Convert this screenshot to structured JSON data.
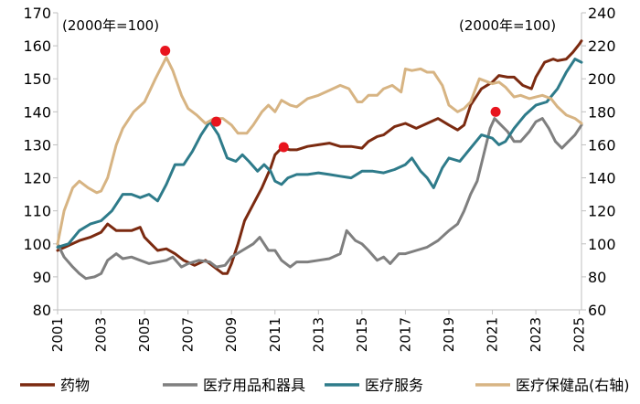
{
  "chart_data": {
    "type": "line",
    "left_note": "(2000年=100)",
    "right_note": "(2000年=100)",
    "x_ticks": [
      "2001",
      "2003",
      "2005",
      "2007",
      "2009",
      "2011",
      "2013",
      "2015",
      "2017",
      "2019",
      "2021",
      "2023",
      "2025"
    ],
    "xlim": [
      2001,
      2025.1
    ],
    "ylim_left": [
      80,
      170
    ],
    "ylim_right": [
      60,
      240
    ],
    "y_ticks_left": [
      80,
      90,
      100,
      110,
      120,
      130,
      140,
      150,
      160,
      170
    ],
    "y_ticks_right": [
      60,
      80,
      100,
      120,
      140,
      160,
      180,
      200,
      220,
      240
    ],
    "series": [
      {
        "name": "药物",
        "color": "#7b2a10",
        "axis": "left",
        "points": [
          [
            2001,
            98
          ],
          [
            2001.5,
            99.5
          ],
          [
            2002,
            101
          ],
          [
            2002.5,
            102
          ],
          [
            2003,
            103.5
          ],
          [
            2003.3,
            106
          ],
          [
            2003.7,
            104
          ],
          [
            2004,
            104
          ],
          [
            2004.4,
            104
          ],
          [
            2004.8,
            105
          ],
          [
            2005,
            102
          ],
          [
            2005.3,
            100
          ],
          [
            2005.6,
            98
          ],
          [
            2006,
            98.5
          ],
          [
            2006.4,
            97
          ],
          [
            2006.8,
            95
          ],
          [
            2007.3,
            93.5
          ],
          [
            2007.8,
            95
          ],
          [
            2008.2,
            93
          ],
          [
            2008.6,
            91
          ],
          [
            2008.8,
            91
          ],
          [
            2009,
            94
          ],
          [
            2009.3,
            100
          ],
          [
            2009.6,
            107
          ],
          [
            2010,
            112
          ],
          [
            2010.4,
            117
          ],
          [
            2010.8,
            123
          ],
          [
            2011,
            127
          ],
          [
            2011.3,
            129
          ],
          [
            2011.7,
            128.5
          ],
          [
            2012,
            128.5
          ],
          [
            2012.5,
            129.5
          ],
          [
            2013,
            130
          ],
          [
            2013.5,
            130.5
          ],
          [
            2014,
            129.5
          ],
          [
            2014.5,
            129.5
          ],
          [
            2015,
            129
          ],
          [
            2015.3,
            131
          ],
          [
            2015.7,
            132.5
          ],
          [
            2016,
            133
          ],
          [
            2016.5,
            135.5
          ],
          [
            2017,
            136.5
          ],
          [
            2017.5,
            135
          ],
          [
            2018,
            136.5
          ],
          [
            2018.5,
            138
          ],
          [
            2019,
            136
          ],
          [
            2019.4,
            134.5
          ],
          [
            2019.7,
            136
          ],
          [
            2020,
            142
          ],
          [
            2020.5,
            147
          ],
          [
            2021,
            149
          ],
          [
            2021.3,
            151
          ],
          [
            2021.7,
            150.5
          ],
          [
            2022,
            150.5
          ],
          [
            2022.4,
            148
          ],
          [
            2022.8,
            147
          ],
          [
            2023,
            150.5
          ],
          [
            2023.4,
            155
          ],
          [
            2023.8,
            156
          ],
          [
            2024,
            155.5
          ],
          [
            2024.4,
            156
          ],
          [
            2024.7,
            158
          ],
          [
            2025,
            160.5
          ],
          [
            2025.1,
            161.5
          ]
        ]
      },
      {
        "name": "医疗用品和器具",
        "color": "#7f7f7f",
        "axis": "left",
        "points": [
          [
            2001,
            100
          ],
          [
            2001.3,
            96
          ],
          [
            2001.7,
            93
          ],
          [
            2002,
            91
          ],
          [
            2002.3,
            89.5
          ],
          [
            2002.7,
            90
          ],
          [
            2003,
            91
          ],
          [
            2003.3,
            95
          ],
          [
            2003.7,
            97
          ],
          [
            2004,
            95.5
          ],
          [
            2004.4,
            96
          ],
          [
            2004.8,
            95
          ],
          [
            2005.2,
            94
          ],
          [
            2005.6,
            94.5
          ],
          [
            2006,
            95
          ],
          [
            2006.3,
            96
          ],
          [
            2006.7,
            93
          ],
          [
            2007,
            94
          ],
          [
            2007.5,
            95
          ],
          [
            2008,
            94.5
          ],
          [
            2008.3,
            93
          ],
          [
            2008.7,
            93.5
          ],
          [
            2009,
            96
          ],
          [
            2009.5,
            98
          ],
          [
            2010,
            100
          ],
          [
            2010.3,
            102
          ],
          [
            2010.7,
            98
          ],
          [
            2011,
            98
          ],
          [
            2011.3,
            95
          ],
          [
            2011.7,
            93
          ],
          [
            2012,
            94.5
          ],
          [
            2012.5,
            94.5
          ],
          [
            2013,
            95
          ],
          [
            2013.5,
            95.5
          ],
          [
            2014,
            97
          ],
          [
            2014.3,
            104
          ],
          [
            2014.7,
            101
          ],
          [
            2015,
            100
          ],
          [
            2015.3,
            98
          ],
          [
            2015.7,
            95
          ],
          [
            2016,
            96
          ],
          [
            2016.3,
            94
          ],
          [
            2016.7,
            97
          ],
          [
            2017,
            97
          ],
          [
            2017.5,
            98
          ],
          [
            2018,
            99
          ],
          [
            2018.5,
            101
          ],
          [
            2019,
            104
          ],
          [
            2019.4,
            106
          ],
          [
            2019.7,
            110
          ],
          [
            2020,
            115
          ],
          [
            2020.3,
            119
          ],
          [
            2020.6,
            127
          ],
          [
            2020.9,
            135
          ],
          [
            2021.1,
            138
          ],
          [
            2021.4,
            136
          ],
          [
            2021.7,
            134
          ],
          [
            2022,
            131
          ],
          [
            2022.3,
            131
          ],
          [
            2022.7,
            134
          ],
          [
            2023,
            137
          ],
          [
            2023.3,
            138
          ],
          [
            2023.6,
            135
          ],
          [
            2023.9,
            131
          ],
          [
            2024.2,
            129
          ],
          [
            2024.5,
            131
          ],
          [
            2024.8,
            133
          ],
          [
            2025,
            135
          ],
          [
            2025.1,
            136
          ]
        ]
      },
      {
        "name": "医疗服务",
        "color": "#2e7b8a",
        "axis": "left",
        "points": [
          [
            2001,
            99
          ],
          [
            2001.5,
            100
          ],
          [
            2002,
            104
          ],
          [
            2002.5,
            106
          ],
          [
            2003,
            107
          ],
          [
            2003.5,
            110
          ],
          [
            2004,
            115
          ],
          [
            2004.4,
            115
          ],
          [
            2004.8,
            114
          ],
          [
            2005.2,
            115
          ],
          [
            2005.6,
            113
          ],
          [
            2006,
            118
          ],
          [
            2006.4,
            124
          ],
          [
            2006.8,
            124
          ],
          [
            2007.2,
            128
          ],
          [
            2007.6,
            133
          ],
          [
            2008,
            137
          ],
          [
            2008.4,
            133
          ],
          [
            2008.8,
            126
          ],
          [
            2009.2,
            125
          ],
          [
            2009.5,
            127
          ],
          [
            2009.8,
            125
          ],
          [
            2010.2,
            122
          ],
          [
            2010.5,
            124
          ],
          [
            2010.8,
            122
          ],
          [
            2011,
            119
          ],
          [
            2011.3,
            118
          ],
          [
            2011.6,
            120
          ],
          [
            2012,
            121
          ],
          [
            2012.5,
            121
          ],
          [
            2013,
            121.5
          ],
          [
            2013.5,
            121
          ],
          [
            2014,
            120.5
          ],
          [
            2014.5,
            120
          ],
          [
            2015,
            122
          ],
          [
            2015.5,
            122
          ],
          [
            2016,
            121.5
          ],
          [
            2016.5,
            122.5
          ],
          [
            2017,
            124
          ],
          [
            2017.3,
            126
          ],
          [
            2017.7,
            122
          ],
          [
            2018,
            120
          ],
          [
            2018.3,
            117
          ],
          [
            2018.7,
            123
          ],
          [
            2019,
            126
          ],
          [
            2019.5,
            125
          ],
          [
            2020,
            129
          ],
          [
            2020.5,
            133
          ],
          [
            2021,
            132
          ],
          [
            2021.3,
            130
          ],
          [
            2021.6,
            131
          ],
          [
            2022,
            135
          ],
          [
            2022.5,
            139
          ],
          [
            2023,
            142
          ],
          [
            2023.5,
            143
          ],
          [
            2024,
            147
          ],
          [
            2024.4,
            152
          ],
          [
            2024.8,
            156
          ],
          [
            2025.1,
            155
          ]
        ]
      },
      {
        "name": "医疗保健品(右轴)",
        "color": "#d7b483",
        "axis": "right",
        "points": [
          [
            2001,
            100
          ],
          [
            2001.3,
            120
          ],
          [
            2001.7,
            134
          ],
          [
            2002,
            138
          ],
          [
            2002.4,
            134
          ],
          [
            2002.8,
            131
          ],
          [
            2003,
            132
          ],
          [
            2003.3,
            140
          ],
          [
            2003.7,
            160
          ],
          [
            2004,
            170
          ],
          [
            2004.5,
            180
          ],
          [
            2005,
            186
          ],
          [
            2005.5,
            200
          ],
          [
            2006,
            213
          ],
          [
            2006.3,
            205
          ],
          [
            2006.7,
            190
          ],
          [
            2007,
            182
          ],
          [
            2007.4,
            178
          ],
          [
            2007.8,
            173
          ],
          [
            2008.2,
            176
          ],
          [
            2008.6,
            176
          ],
          [
            2009,
            172
          ],
          [
            2009.3,
            167
          ],
          [
            2009.7,
            167
          ],
          [
            2010,
            172
          ],
          [
            2010.4,
            180
          ],
          [
            2010.7,
            184
          ],
          [
            2011,
            180
          ],
          [
            2011.3,
            187
          ],
          [
            2011.7,
            184
          ],
          [
            2012,
            183
          ],
          [
            2012.5,
            188
          ],
          [
            2013,
            190
          ],
          [
            2013.5,
            193
          ],
          [
            2014,
            196
          ],
          [
            2014.4,
            194
          ],
          [
            2014.8,
            186
          ],
          [
            2015,
            186
          ],
          [
            2015.3,
            190
          ],
          [
            2015.7,
            190
          ],
          [
            2016,
            194
          ],
          [
            2016.4,
            196
          ],
          [
            2016.8,
            192
          ],
          [
            2017,
            206
          ],
          [
            2017.3,
            205
          ],
          [
            2017.7,
            206
          ],
          [
            2018,
            204
          ],
          [
            2018.3,
            204
          ],
          [
            2018.7,
            196
          ],
          [
            2019,
            184
          ],
          [
            2019.4,
            180
          ],
          [
            2019.7,
            182
          ],
          [
            2020,
            186
          ],
          [
            2020.4,
            200
          ],
          [
            2020.8,
            198
          ],
          [
            2021,
            197
          ],
          [
            2021.3,
            198
          ],
          [
            2021.6,
            195
          ],
          [
            2022,
            189
          ],
          [
            2022.3,
            190
          ],
          [
            2022.7,
            188
          ],
          [
            2023,
            189
          ],
          [
            2023.3,
            190
          ],
          [
            2023.7,
            188
          ],
          [
            2024,
            183
          ],
          [
            2024.4,
            178
          ],
          [
            2024.8,
            176
          ],
          [
            2025.1,
            173
          ]
        ]
      }
    ],
    "markers": [
      {
        "x": 2005.95,
        "y": 158.5,
        "axis": "left"
      },
      {
        "x": 2008.3,
        "y": 137,
        "axis": "left"
      },
      {
        "x": 2011.4,
        "y": 129.3,
        "axis": "left"
      },
      {
        "x": 2021.15,
        "y": 140,
        "axis": "left"
      }
    ],
    "marker_color": "#e8141e"
  }
}
